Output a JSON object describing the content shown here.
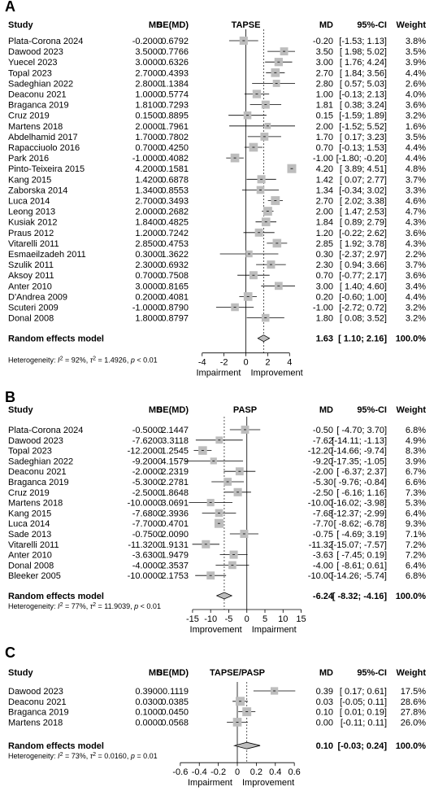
{
  "chart_data": [
    {
      "type": "forest",
      "panel": "A",
      "headers": {
        "study": "Study",
        "md": "MD",
        "se": "SE(MD)",
        "title": "TAPSE",
        "md2": "MD",
        "ci": "95%-CI",
        "weight": "Weight"
      },
      "studies": [
        {
          "study": "Plata-Corona 2024",
          "md": "-0.2000",
          "se": "0.6792",
          "md_fmt": "-0.20",
          "ci_fmt": "[-1.53; 1.13]",
          "weight": "3.8%",
          "est": -0.2,
          "lo": -1.53,
          "hi": 1.13,
          "w": 3.8
        },
        {
          "study": "Dawood 2023",
          "md": "3.5000",
          "se": "0.7766",
          "md_fmt": "3.50",
          "ci_fmt": "[ 1.98; 5.02]",
          "weight": "3.5%",
          "est": 3.5,
          "lo": 1.98,
          "hi": 5.02,
          "w": 3.5
        },
        {
          "study": "Yuecel 2023",
          "md": "3.0000",
          "se": "0.6326",
          "md_fmt": "3.00",
          "ci_fmt": "[ 1.76; 4.24]",
          "weight": "3.9%",
          "est": 3.0,
          "lo": 1.76,
          "hi": 4.24,
          "w": 3.9
        },
        {
          "study": "Topal 2023",
          "md": "2.7000",
          "se": "0.4393",
          "md_fmt": "2.70",
          "ci_fmt": "[ 1.84; 3.56]",
          "weight": "4.4%",
          "est": 2.7,
          "lo": 1.84,
          "hi": 3.56,
          "w": 4.4
        },
        {
          "study": "Sadeghian 2022",
          "md": "2.8000",
          "se": "1.1384",
          "md_fmt": "2.80",
          "ci_fmt": "[ 0.57; 5.03]",
          "weight": "2.6%",
          "est": 2.8,
          "lo": 0.57,
          "hi": 5.03,
          "w": 2.6
        },
        {
          "study": "Deaconu 2021",
          "md": "1.0000",
          "se": "0.5774",
          "md_fmt": "1.00",
          "ci_fmt": "[-0.13; 2.13]",
          "weight": "4.0%",
          "est": 1.0,
          "lo": -0.13,
          "hi": 2.13,
          "w": 4.0
        },
        {
          "study": "Braganca 2019",
          "md": "1.8100",
          "se": "0.7293",
          "md_fmt": "1.81",
          "ci_fmt": "[ 0.38; 3.24]",
          "weight": "3.6%",
          "est": 1.81,
          "lo": 0.38,
          "hi": 3.24,
          "w": 3.6
        },
        {
          "study": "Cruz 2019",
          "md": "0.1500",
          "se": "0.8895",
          "md_fmt": "0.15",
          "ci_fmt": "[-1.59; 1.89]",
          "weight": "3.2%",
          "est": 0.15,
          "lo": -1.59,
          "hi": 1.89,
          "w": 3.2
        },
        {
          "study": "Martens 2018",
          "md": "2.0000",
          "se": "1.7961",
          "md_fmt": "2.00",
          "ci_fmt": "[-1.52; 5.52]",
          "weight": "1.6%",
          "est": 2.0,
          "lo": -1.52,
          "hi": 5.52,
          "w": 1.6
        },
        {
          "study": "Abdelhamid 2017",
          "md": "1.7000",
          "se": "0.7802",
          "md_fmt": "1.70",
          "ci_fmt": "[ 0.17; 3.23]",
          "weight": "3.5%",
          "est": 1.7,
          "lo": 0.17,
          "hi": 3.23,
          "w": 3.5
        },
        {
          "study": "Rapacciuolo 2016",
          "md": "0.7000",
          "se": "0.4250",
          "md_fmt": "0.70",
          "ci_fmt": "[-0.13; 1.53]",
          "weight": "4.4%",
          "est": 0.7,
          "lo": -0.13,
          "hi": 1.53,
          "w": 4.4
        },
        {
          "study": "Park 2016",
          "md": "-1.0000",
          "se": "0.4082",
          "md_fmt": "-1.00",
          "ci_fmt": "[-1.80; -0.20]",
          "weight": "4.4%",
          "est": -1.0,
          "lo": -1.8,
          "hi": -0.2,
          "w": 4.4
        },
        {
          "study": "Pinto-Teixeira 2015",
          "md": "4.2000",
          "se": "0.1581",
          "md_fmt": "4.20",
          "ci_fmt": "[ 3.89; 4.51]",
          "weight": "4.8%",
          "est": 4.2,
          "lo": 3.89,
          "hi": 4.51,
          "w": 4.8
        },
        {
          "study": "Kang 2015",
          "md": "1.4200",
          "se": "0.6878",
          "md_fmt": "1.42",
          "ci_fmt": "[ 0.07; 2.77]",
          "weight": "3.7%",
          "est": 1.42,
          "lo": 0.07,
          "hi": 2.77,
          "w": 3.7
        },
        {
          "study": "Zaborska 2014",
          "md": "1.3400",
          "se": "0.8553",
          "md_fmt": "1.34",
          "ci_fmt": "[-0.34; 3.02]",
          "weight": "3.3%",
          "est": 1.34,
          "lo": -0.34,
          "hi": 3.02,
          "w": 3.3
        },
        {
          "study": "Luca 2014",
          "md": "2.7000",
          "se": "0.3493",
          "md_fmt": "2.70",
          "ci_fmt": "[ 2.02; 3.38]",
          "weight": "4.6%",
          "est": 2.7,
          "lo": 2.02,
          "hi": 3.38,
          "w": 4.6
        },
        {
          "study": "Leong 2013",
          "md": "2.0000",
          "se": "0.2682",
          "md_fmt": "2.00",
          "ci_fmt": "[ 1.47; 2.53]",
          "weight": "4.7%",
          "est": 2.0,
          "lo": 1.47,
          "hi": 2.53,
          "w": 4.7
        },
        {
          "study": "Kusiak 2012",
          "md": "1.8400",
          "se": "0.4825",
          "md_fmt": "1.84",
          "ci_fmt": "[ 0.89; 2.79]",
          "weight": "4.3%",
          "est": 1.84,
          "lo": 0.89,
          "hi": 2.79,
          "w": 4.3
        },
        {
          "study": "Praus 2012",
          "md": "1.2000",
          "se": "0.7242",
          "md_fmt": "1.20",
          "ci_fmt": "[-0.22; 2.62]",
          "weight": "3.6%",
          "est": 1.2,
          "lo": -0.22,
          "hi": 2.62,
          "w": 3.6
        },
        {
          "study": "Vitarelli 2011",
          "md": "2.8500",
          "se": "0.4753",
          "md_fmt": "2.85",
          "ci_fmt": "[ 1.92; 3.78]",
          "weight": "4.3%",
          "est": 2.85,
          "lo": 1.92,
          "hi": 3.78,
          "w": 4.3
        },
        {
          "study": "Esmaeilzadeh 2011",
          "md": "0.3000",
          "se": "1.3622",
          "md_fmt": "0.30",
          "ci_fmt": "[-2.37; 2.97]",
          "weight": "2.2%",
          "est": 0.3,
          "lo": -2.37,
          "hi": 2.97,
          "w": 2.2
        },
        {
          "study": "Szulik 2011",
          "md": "2.3000",
          "se": "0.6932",
          "md_fmt": "2.30",
          "ci_fmt": "[ 0.94; 3.66]",
          "weight": "3.7%",
          "est": 2.3,
          "lo": 0.94,
          "hi": 3.66,
          "w": 3.7
        },
        {
          "study": "Aksoy 2011",
          "md": "0.7000",
          "se": "0.7508",
          "md_fmt": "0.70",
          "ci_fmt": "[-0.77; 2.17]",
          "weight": "3.6%",
          "est": 0.7,
          "lo": -0.77,
          "hi": 2.17,
          "w": 3.6
        },
        {
          "study": "Anter 2010",
          "md": "3.0000",
          "se": "0.8165",
          "md_fmt": "3.00",
          "ci_fmt": "[ 1.40; 4.60]",
          "weight": "3.4%",
          "est": 3.0,
          "lo": 1.4,
          "hi": 4.6,
          "w": 3.4
        },
        {
          "study": "D'Andrea 2009",
          "md": "0.2000",
          "se": "0.4081",
          "md_fmt": "0.20",
          "ci_fmt": "[-0.60; 1.00]",
          "weight": "4.4%",
          "est": 0.2,
          "lo": -0.6,
          "hi": 1.0,
          "w": 4.4
        },
        {
          "study": "Scuteri 2009",
          "md": "-1.0000",
          "se": "0.8790",
          "md_fmt": "-1.00",
          "ci_fmt": "[-2.72; 0.72]",
          "weight": "3.2%",
          "est": -1.0,
          "lo": -2.72,
          "hi": 0.72,
          "w": 3.2
        },
        {
          "study": "Donal 2008",
          "md": "1.8000",
          "se": "0.8797",
          "md_fmt": "1.80",
          "ci_fmt": "[ 0.08; 3.52]",
          "weight": "3.2%",
          "est": 1.8,
          "lo": 0.08,
          "hi": 3.52,
          "w": 3.2
        }
      ],
      "summary": {
        "label": "Random effects model",
        "md_fmt": "1.63",
        "ci_fmt": "[ 1.10; 2.16]",
        "weight": "100.0%",
        "est": 1.63,
        "lo": 1.1,
        "hi": 2.16
      },
      "heterogeneity": {
        "prefix": "Heterogeneity: ",
        "i2_value": " = 92%, ",
        "tau2_value": " = 1.4926, ",
        "p_value": " < 0.01"
      },
      "x_range": [
        -4.5,
        4.5
      ],
      "ticks": [
        -4,
        -2,
        0,
        2,
        4
      ],
      "tick_labels": [
        "-4",
        "-2",
        "0",
        "2",
        "4"
      ],
      "axis_labels": {
        "left": "Impairment",
        "right": "Improvement"
      }
    },
    {
      "type": "forest",
      "panel": "B",
      "headers": {
        "study": "Study",
        "md": "MD",
        "se": "SE(MD)",
        "title": "PASP",
        "md2": "MD",
        "ci": "95%-CI",
        "weight": "Weight"
      },
      "studies": [
        {
          "study": "Plata-Corona 2024",
          "md": "-0.5000",
          "se": "2.1447",
          "md_fmt": "-0.50",
          "ci_fmt": "[ -4.70; 3.70]",
          "weight": "6.8%",
          "est": -0.5,
          "lo": -4.7,
          "hi": 3.7,
          "w": 6.8
        },
        {
          "study": "Dawood 2023",
          "md": "-7.6200",
          "se": "3.3118",
          "md_fmt": "-7.62",
          "ci_fmt": "[-14.11; -1.13]",
          "weight": "4.9%",
          "est": -7.62,
          "lo": -14.11,
          "hi": -1.13,
          "w": 4.9
        },
        {
          "study": "Topal 2023",
          "md": "-12.2000",
          "se": "1.2545",
          "md_fmt": "-12.20",
          "ci_fmt": "[-14.66; -9.74]",
          "weight": "8.3%",
          "est": -12.2,
          "lo": -14.66,
          "hi": -9.74,
          "w": 8.3
        },
        {
          "study": "Sadeghian 2022",
          "md": "-9.2000",
          "se": "4.1579",
          "md_fmt": "-9.20",
          "ci_fmt": "[-17.35; -1.05]",
          "weight": "3.9%",
          "est": -9.2,
          "lo": -17.35,
          "hi": -1.05,
          "w": 3.9
        },
        {
          "study": "Deaconu 2021",
          "md": "-2.0000",
          "se": "2.2319",
          "md_fmt": "-2.00",
          "ci_fmt": "[ -6.37; 2.37]",
          "weight": "6.7%",
          "est": -2.0,
          "lo": -6.37,
          "hi": 2.37,
          "w": 6.7
        },
        {
          "study": "Braganca 2019",
          "md": "-5.3000",
          "se": "2.2781",
          "md_fmt": "-5.30",
          "ci_fmt": "[ -9.76; -0.84]",
          "weight": "6.6%",
          "est": -5.3,
          "lo": -9.76,
          "hi": -0.84,
          "w": 6.6
        },
        {
          "study": "Cruz 2019",
          "md": "-2.5000",
          "se": "1.8648",
          "md_fmt": "-2.50",
          "ci_fmt": "[ -6.16; 1.16]",
          "weight": "7.3%",
          "est": -2.5,
          "lo": -6.16,
          "hi": 1.16,
          "w": 7.3
        },
        {
          "study": "Martens 2018",
          "md": "-10.0000",
          "se": "3.0691",
          "md_fmt": "-10.00",
          "ci_fmt": "[-16.02; -3.98]",
          "weight": "5.3%",
          "est": -10.0,
          "lo": -16.02,
          "hi": -3.98,
          "w": 5.3
        },
        {
          "study": "Kang 2015",
          "md": "-7.6800",
          "se": "2.3936",
          "md_fmt": "-7.68",
          "ci_fmt": "[-12.37; -2.99]",
          "weight": "6.4%",
          "est": -7.68,
          "lo": -12.37,
          "hi": -2.99,
          "w": 6.4
        },
        {
          "study": "Luca 2014",
          "md": "-7.7000",
          "se": "0.4701",
          "md_fmt": "-7.70",
          "ci_fmt": "[ -8.62; -6.78]",
          "weight": "9.3%",
          "est": -7.7,
          "lo": -8.62,
          "hi": -6.78,
          "w": 9.3
        },
        {
          "study": "Sade 2013",
          "md": "-0.7500",
          "se": "2.0090",
          "md_fmt": "-0.75",
          "ci_fmt": "[ -4.69; 3.19]",
          "weight": "7.1%",
          "est": -0.75,
          "lo": -4.69,
          "hi": 3.19,
          "w": 7.1
        },
        {
          "study": "Vitarelli 2011",
          "md": "-11.3200",
          "se": "1.9131",
          "md_fmt": "-11.32",
          "ci_fmt": "[-15.07; -7.57]",
          "weight": "7.2%",
          "est": -11.32,
          "lo": -15.07,
          "hi": -7.57,
          "w": 7.2
        },
        {
          "study": "Anter 2010",
          "md": "-3.6300",
          "se": "1.9479",
          "md_fmt": "-3.63",
          "ci_fmt": "[ -7.45; 0.19]",
          "weight": "7.2%",
          "est": -3.63,
          "lo": -7.45,
          "hi": 0.19,
          "w": 7.2
        },
        {
          "study": "Donal 2008",
          "md": "-4.0000",
          "se": "2.3537",
          "md_fmt": "-4.00",
          "ci_fmt": "[ -8.61; 0.61]",
          "weight": "6.4%",
          "est": -4.0,
          "lo": -8.61,
          "hi": 0.61,
          "w": 6.4
        },
        {
          "study": "Bleeker 2005",
          "md": "-10.0000",
          "se": "2.1753",
          "md_fmt": "-10.00",
          "ci_fmt": "[-14.26; -5.74]",
          "weight": "6.8%",
          "est": -10.0,
          "lo": -14.26,
          "hi": -5.74,
          "w": 6.8
        }
      ],
      "summary": {
        "label": "Random effects model",
        "md_fmt": "-6.24",
        "ci_fmt": "[ -8.32; -4.16]",
        "weight": "100.0%",
        "est": -6.24,
        "lo": -8.32,
        "hi": -4.16
      },
      "heterogeneity": {
        "prefix": "Heterogeneity: ",
        "i2_value": " = 77%, ",
        "tau2_value": " = 11.9039, ",
        "p_value": " < 0.01"
      },
      "x_range": [
        -17,
        16
      ],
      "ticks": [
        -15,
        -10,
        -5,
        0,
        5,
        10,
        15
      ],
      "tick_labels": [
        "-15",
        "-10",
        "-5",
        "0",
        "5",
        "10",
        "15"
      ],
      "axis_labels": {
        "left": "Improvement",
        "right": "Impairment"
      }
    },
    {
      "type": "forest",
      "panel": "C",
      "headers": {
        "study": "Study",
        "md": "MD",
        "se": "SE(MD)",
        "title": "TAPSE/PASP",
        "md2": "MD",
        "ci": "95%-CI",
        "weight": "Weight"
      },
      "studies": [
        {
          "study": "Dawood 2023",
          "md": "0.3900",
          "se": "0.1119",
          "md_fmt": "0.39",
          "ci_fmt": "[ 0.17; 0.61]",
          "weight": "17.5%",
          "est": 0.39,
          "lo": 0.17,
          "hi": 0.61,
          "w": 17.5
        },
        {
          "study": "Deaconu 2021",
          "md": "0.0300",
          "se": "0.0385",
          "md_fmt": "0.03",
          "ci_fmt": "[-0.05; 0.11]",
          "weight": "28.6%",
          "est": 0.03,
          "lo": -0.05,
          "hi": 0.11,
          "w": 28.6
        },
        {
          "study": "Braganca 2019",
          "md": "0.1000",
          "se": "0.0450",
          "md_fmt": "0.10",
          "ci_fmt": "[ 0.01; 0.19]",
          "weight": "27.8%",
          "est": 0.1,
          "lo": 0.01,
          "hi": 0.19,
          "w": 27.8
        },
        {
          "study": "Martens 2018",
          "md": "0.0000",
          "se": "0.0568",
          "md_fmt": "0.00",
          "ci_fmt": "[-0.11; 0.11]",
          "weight": "26.0%",
          "est": 0.0,
          "lo": -0.11,
          "hi": 0.11,
          "w": 26.0
        }
      ],
      "summary": {
        "label": "Random effects model",
        "md_fmt": "0.10",
        "ci_fmt": "[-0.03; 0.24]",
        "weight": "100.0%",
        "est": 0.1,
        "lo": -0.03,
        "hi": 0.24
      },
      "heterogeneity": {
        "prefix": "Heterogeneity: ",
        "i2_value": " = 73%, ",
        "tau2_value": " = 0.0160, ",
        "p_value": " = 0.01"
      },
      "x_range": [
        -0.65,
        0.65
      ],
      "ticks": [
        -0.6,
        -0.4,
        -0.2,
        0,
        0.2,
        0.4,
        0.6
      ],
      "tick_labels": [
        "-0.6",
        "-0.4",
        "-0.2",
        "0",
        "0.2",
        "0.4",
        "0.6"
      ],
      "axis_labels": {
        "left": "Impairment",
        "right": "Improvement"
      }
    }
  ],
  "colors": {
    "square": "#bdbdbd",
    "line": "#000000",
    "dashed": "#333333",
    "diamond": "#bdbdbd"
  }
}
